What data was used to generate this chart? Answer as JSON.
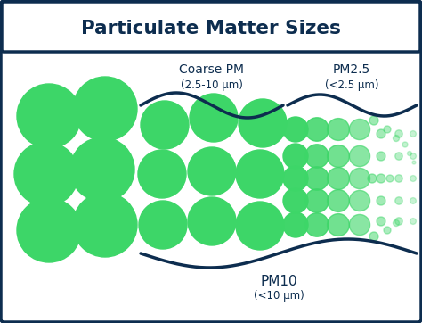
{
  "title": "Particulate Matter Sizes",
  "title_color": "#0d2d4f",
  "background_color": "#ffffff",
  "green_color": "#3dd668",
  "label_coarse": "Coarse PM",
  "label_coarse_sub": "(2.5-10 μm)",
  "label_pm25": "PM2.5",
  "label_pm25_sub": "(<2.5 μm)",
  "label_pm10": "PM10",
  "label_pm10_sub": "(<10 μm)",
  "text_color": "#0d2d4f",
  "figsize": [
    4.74,
    3.62
  ],
  "dpi": 100
}
